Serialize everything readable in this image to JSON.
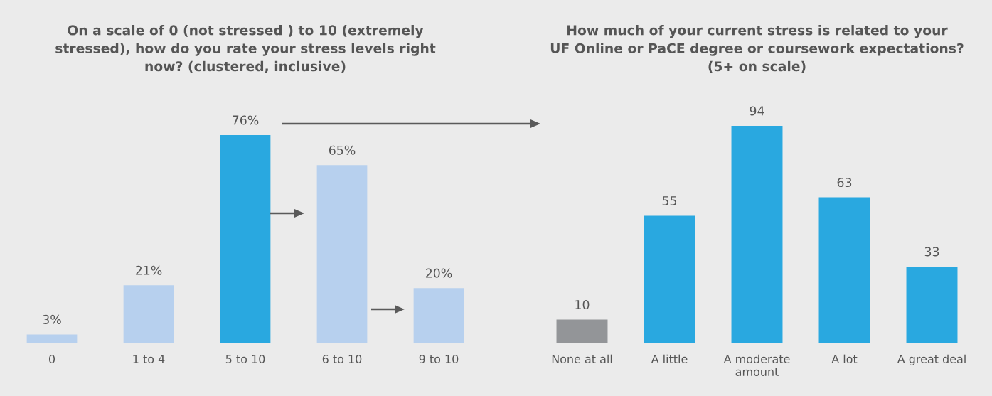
{
  "chart_data": [
    {
      "type": "bar",
      "title": "On a scale of 0 (not stressed ) to 10 (extremely\nstressed), how do you rate your stress levels right\nnow? (clustered, inclusive)",
      "categories": [
        "0",
        "1 to 4",
        "5 to 10",
        "6 to 10",
        "9 to 10"
      ],
      "values": [
        3,
        21,
        76,
        65,
        20
      ],
      "colors": [
        "#b7d0ee",
        "#b7d0ee",
        "#29a8e0",
        "#b7d0ee",
        "#b7d0ee"
      ],
      "value_labels": [
        "3%",
        "21%",
        "76%",
        "65%",
        "20%"
      ],
      "tick_labels": "x",
      "grid": false,
      "legend": false
    },
    {
      "type": "bar",
      "title": "How much of your current stress is related to your\nUF Online or PaCE degree or coursework expectations?\n(5+ on scale)",
      "categories": [
        "None at all",
        "A little",
        "A moderate\namount",
        "A lot",
        "A great deal"
      ],
      "values": [
        10,
        55,
        94,
        63,
        33
      ],
      "colors": [
        "#939598",
        "#29a8e0",
        "#29a8e0",
        "#29a8e0",
        "#29a8e0"
      ],
      "data_labels": true,
      "tick_labels": "x",
      "grid": false,
      "legend": false
    }
  ]
}
